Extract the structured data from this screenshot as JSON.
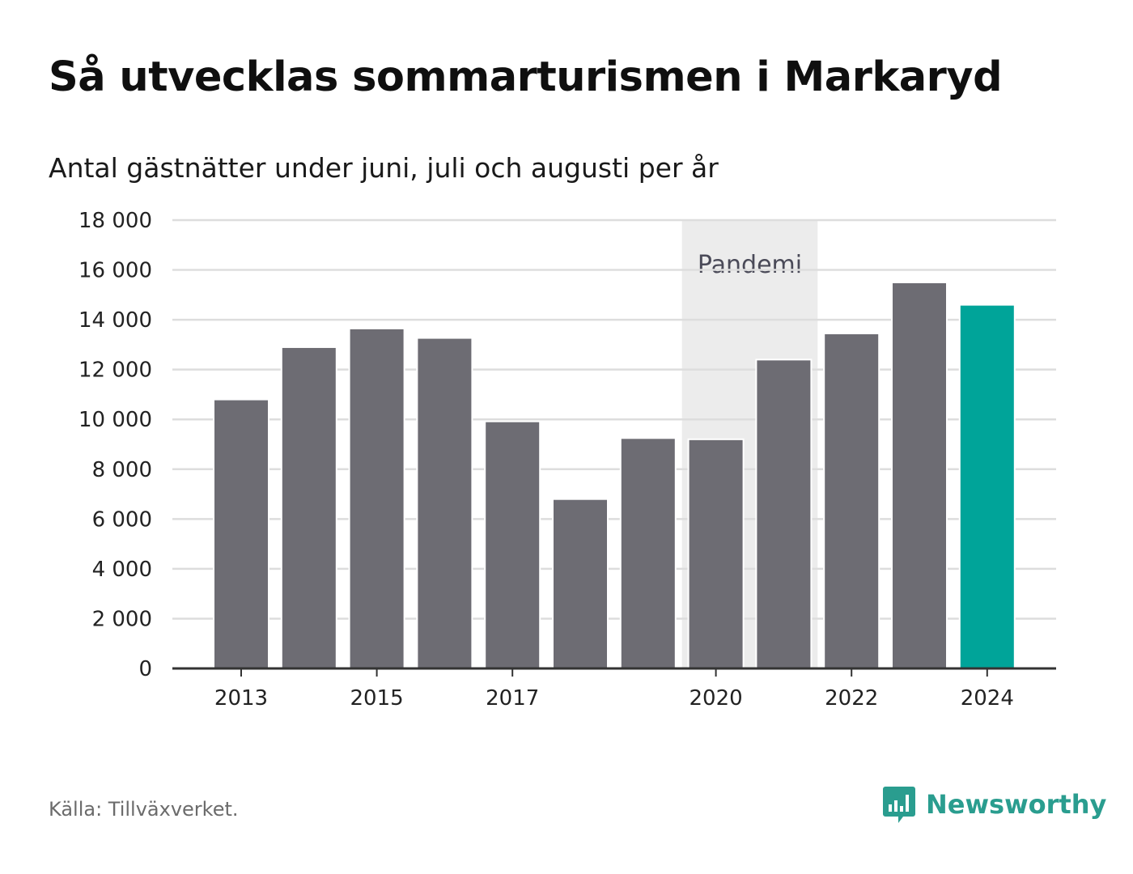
{
  "title": "Så utvecklas sommarturismen i Markaryd",
  "subtitle": "Antal gästnätter under juni, juli och augusti per år",
  "source": "Källa: Tillväxverket.",
  "brand": {
    "name": "Newsworthy",
    "icon": "newsworthy-logo-icon",
    "color": "#2a9d8f"
  },
  "colors": {
    "bar": "#6d6c73",
    "highlight": "#00a499",
    "band": "#ececec",
    "grid": "#dddddd",
    "axis": "#333333"
  },
  "chart_data": {
    "type": "bar",
    "categories": [
      "2013",
      "2014",
      "2015",
      "2016",
      "2017",
      "2018",
      "2019",
      "2020",
      "2021",
      "2022",
      "2023",
      "2024"
    ],
    "values": [
      10800,
      12900,
      13650,
      13270,
      9920,
      6800,
      9250,
      9200,
      12400,
      13450,
      15500,
      14600
    ],
    "highlight_index": 11,
    "x_tick_labels": [
      "2013",
      "2015",
      "2017",
      "2020",
      "2022",
      "2024"
    ],
    "y_ticks": [
      0,
      2000,
      4000,
      6000,
      8000,
      10000,
      12000,
      14000,
      16000,
      18000
    ],
    "y_tick_labels": [
      "0",
      "2 000",
      "4 000",
      "6 000",
      "8 000",
      "10 000",
      "12 000",
      "14 000",
      "16 000",
      "18 000"
    ],
    "ylim": [
      0,
      18000
    ],
    "xlabel": "",
    "ylabel": "",
    "grid": true,
    "annotations": [
      {
        "label": "Pandemi",
        "from": "2020",
        "to": "2021"
      }
    ]
  }
}
